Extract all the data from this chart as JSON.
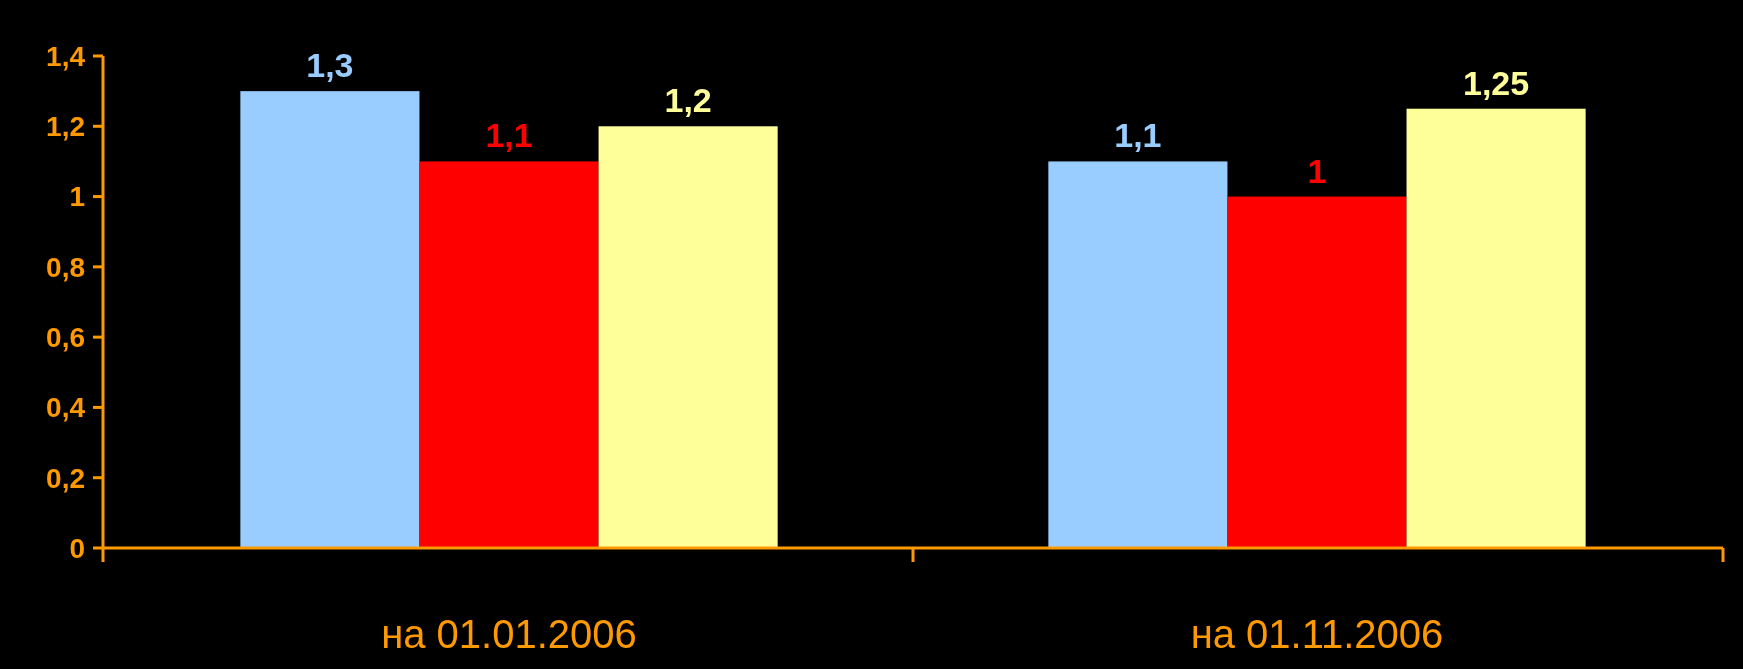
{
  "chart_data": {
    "type": "bar",
    "categories": [
      "на 01.01.2006",
      "на 01.11.2006"
    ],
    "series": [
      {
        "color": "#99ccff",
        "values": [
          1.3,
          1.1
        ],
        "value_labels": [
          "1,3",
          "1,1"
        ]
      },
      {
        "color": "#ff0000",
        "values": [
          1.1,
          1
        ],
        "value_labels": [
          "1,1",
          "1"
        ]
      },
      {
        "color": "#ffff99",
        "values": [
          1.2,
          1.25
        ],
        "value_labels": [
          "1,2",
          "1,25"
        ]
      }
    ],
    "ylim": [
      0,
      1.4
    ],
    "yticks": [
      0,
      {
        "value": 0.2,
        "label": "0,2"
      },
      {
        "value": 0.4,
        "label": "0,4"
      },
      {
        "value": 0.6,
        "label": "0,6"
      },
      {
        "value": 0.8,
        "label": "0,8"
      },
      1,
      {
        "value": 1.2,
        "label": "1,2"
      },
      {
        "value": 1.4,
        "label": "1,4"
      }
    ],
    "grid": false
  }
}
